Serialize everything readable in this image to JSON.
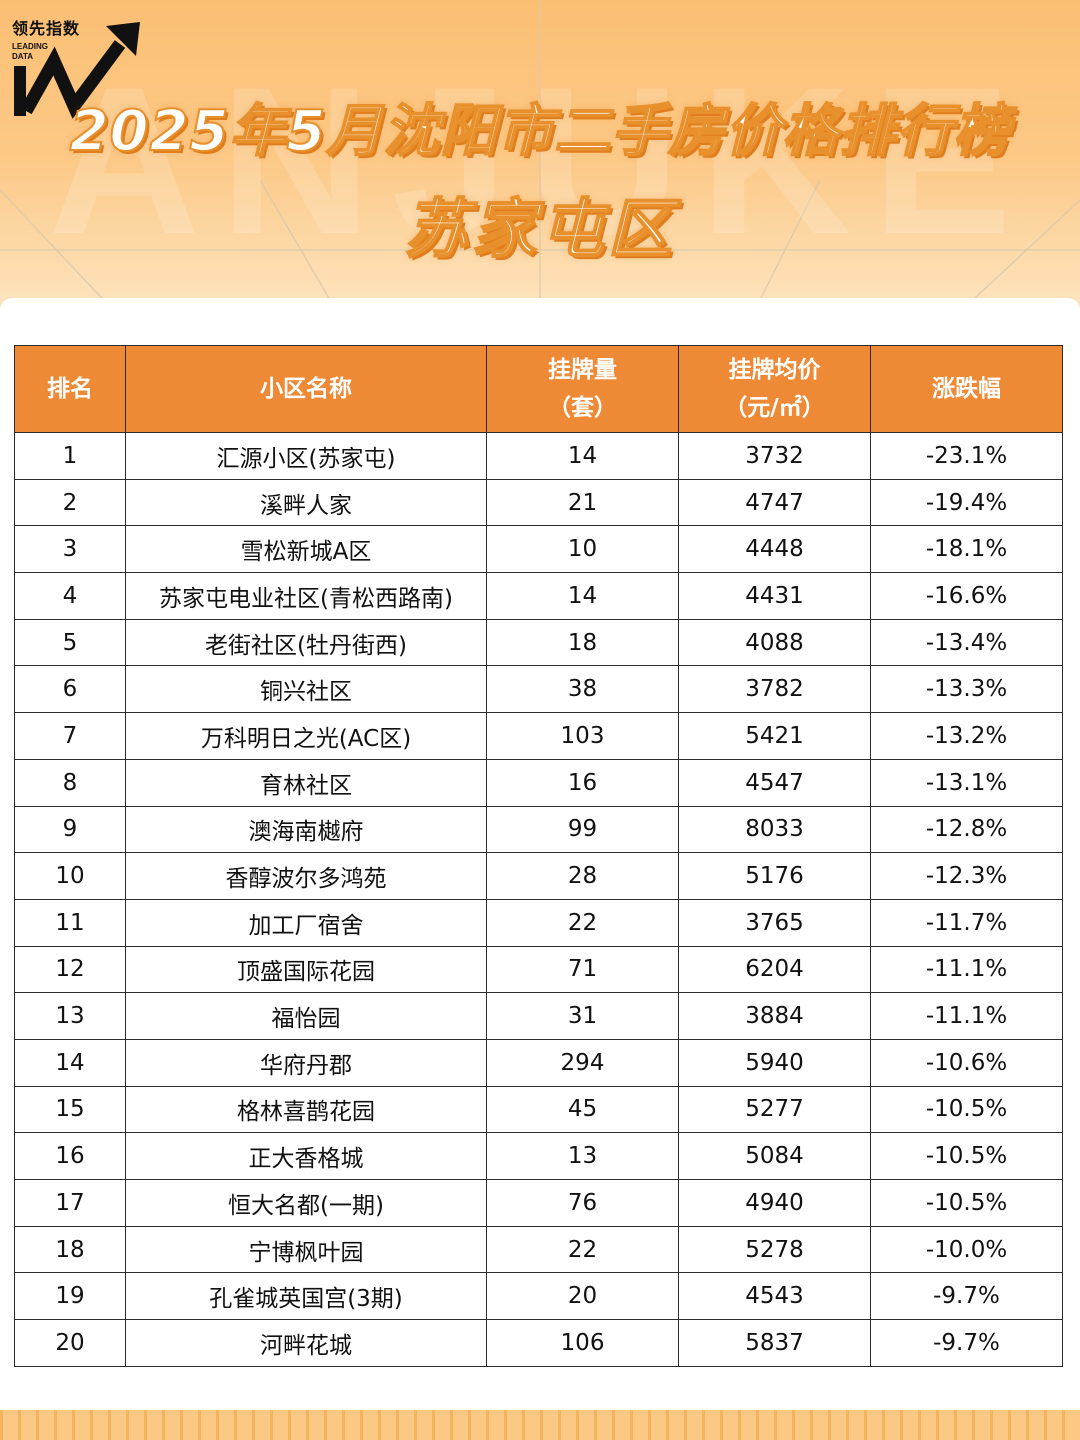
{
  "header": {
    "logo_cn": "领先指数",
    "logo_en_line1": "LEADING",
    "logo_en_line2": "DATA",
    "title": "2025年5月沈阳市二手房价格排行榜",
    "subtitle": "苏家屯区",
    "watermark": "ANJUKE"
  },
  "colors": {
    "header_fill": "#ee8a36",
    "title_stroke": "#e8902c",
    "background": "#fcc987"
  },
  "chart_data": {
    "type": "table",
    "title": "2025年5月沈阳市二手房价格排行榜",
    "subtitle": "苏家屯区",
    "columns": [
      {
        "line1": "排名",
        "line2": ""
      },
      {
        "line1": "小区名称",
        "line2": ""
      },
      {
        "line1": "挂牌量",
        "line2": "（套）"
      },
      {
        "line1": "挂牌均价",
        "line2": "（元/㎡）"
      },
      {
        "line1": "涨跌幅",
        "line2": ""
      }
    ],
    "rows": [
      [
        "1",
        "汇源小区(苏家屯)",
        "14",
        "3732",
        "-23.1%"
      ],
      [
        "2",
        "溪畔人家",
        "21",
        "4747",
        "-19.4%"
      ],
      [
        "3",
        "雪松新城A区",
        "10",
        "4448",
        "-18.1%"
      ],
      [
        "4",
        "苏家屯电业社区(青松西路南)",
        "14",
        "4431",
        "-16.6%"
      ],
      [
        "5",
        "老街社区(牡丹街西)",
        "18",
        "4088",
        "-13.4%"
      ],
      [
        "6",
        "铜兴社区",
        "38",
        "3782",
        "-13.3%"
      ],
      [
        "7",
        "万科明日之光(AC区)",
        "103",
        "5421",
        "-13.2%"
      ],
      [
        "8",
        "育林社区",
        "16",
        "4547",
        "-13.1%"
      ],
      [
        "9",
        "澳海南樾府",
        "99",
        "8033",
        "-12.8%"
      ],
      [
        "10",
        "香醇波尔多鸿苑",
        "28",
        "5176",
        "-12.3%"
      ],
      [
        "11",
        "加工厂宿舍",
        "22",
        "3765",
        "-11.7%"
      ],
      [
        "12",
        "顶盛国际花园",
        "71",
        "6204",
        "-11.1%"
      ],
      [
        "13",
        "福怡园",
        "31",
        "3884",
        "-11.1%"
      ],
      [
        "14",
        "华府丹郡",
        "294",
        "5940",
        "-10.6%"
      ],
      [
        "15",
        "格林喜鹊花园",
        "45",
        "5277",
        "-10.5%"
      ],
      [
        "16",
        "正大香格城",
        "13",
        "5084",
        "-10.5%"
      ],
      [
        "17",
        "恒大名都(一期)",
        "76",
        "4940",
        "-10.5%"
      ],
      [
        "18",
        "宁博枫叶园",
        "22",
        "5278",
        "-10.0%"
      ],
      [
        "19",
        "孔雀城英国宫(3期)",
        "20",
        "4543",
        "-9.7%"
      ],
      [
        "20",
        "河畔花城",
        "106",
        "5837",
        "-9.7%"
      ]
    ]
  }
}
